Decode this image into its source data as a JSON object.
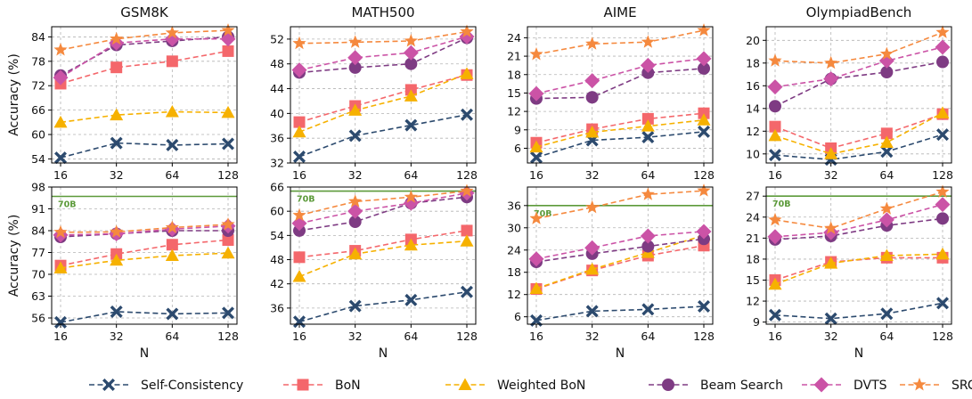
{
  "x_label": "N",
  "y_label": "Accuracy (%)",
  "ref_label": "70B",
  "series_meta": [
    {
      "name": "Self-Consistency",
      "color": "#2c4a6e",
      "marker": "x-icon"
    },
    {
      "name": "BoN",
      "color": "#f4676b",
      "marker": "square-icon"
    },
    {
      "name": "Weighted BoN",
      "color": "#f6b100",
      "marker": "triangle-icon"
    },
    {
      "name": "Beam Search",
      "color": "#7e3b83",
      "marker": "circle-icon"
    },
    {
      "name": "DVTS",
      "color": "#cb53a6",
      "marker": "diamond-icon"
    },
    {
      "name": "SRCA",
      "color": "#f5893e",
      "marker": "star-icon"
    }
  ],
  "chart_data": [
    {
      "type": "line",
      "title": "GSM8K",
      "x": [
        "16",
        "32",
        "64",
        "128"
      ],
      "ylim": [
        53,
        86.5
      ],
      "yticks": [
        54,
        60,
        66,
        72,
        78,
        84
      ],
      "series": [
        {
          "name": "Self-Consistency",
          "values": [
            54.3,
            57.9,
            57.4,
            57.7
          ]
        },
        {
          "name": "BoN",
          "values": [
            72.5,
            76.5,
            78.0,
            80.5
          ]
        },
        {
          "name": "Weighted BoN",
          "values": [
            63.0,
            64.8,
            65.6,
            65.4
          ]
        },
        {
          "name": "Beam Search",
          "values": [
            74.5,
            82.0,
            83.0,
            84.0
          ]
        },
        {
          "name": "DVTS",
          "values": [
            74.0,
            82.5,
            83.5,
            83.5
          ]
        },
        {
          "name": "SRCA",
          "values": [
            80.8,
            83.5,
            85.0,
            85.6
          ]
        }
      ]
    },
    {
      "type": "line",
      "title": "MATH500",
      "x": [
        "16",
        "32",
        "64",
        "128"
      ],
      "ylim": [
        32,
        54
      ],
      "yticks": [
        32,
        36,
        40,
        44,
        48,
        52
      ],
      "series": [
        {
          "name": "Self-Consistency",
          "values": [
            33.0,
            36.4,
            38.1,
            39.8
          ]
        },
        {
          "name": "BoN",
          "values": [
            38.6,
            41.2,
            43.8,
            46.2
          ]
        },
        {
          "name": "Weighted BoN",
          "values": [
            37.0,
            40.5,
            42.8,
            46.4
          ]
        },
        {
          "name": "Beam Search",
          "values": [
            46.6,
            47.4,
            48.0,
            52.2
          ]
        },
        {
          "name": "DVTS",
          "values": [
            47.0,
            49.0,
            49.8,
            52.4
          ]
        },
        {
          "name": "SRCA",
          "values": [
            51.3,
            51.5,
            51.7,
            53.2
          ]
        }
      ]
    },
    {
      "type": "line",
      "title": "AIME",
      "x": [
        "16",
        "32",
        "64",
        "128"
      ],
      "ylim": [
        3.6,
        25.8
      ],
      "yticks": [
        6,
        9,
        12,
        15,
        18,
        21,
        24
      ],
      "series": [
        {
          "name": "Self-Consistency",
          "values": [
            4.5,
            7.3,
            7.8,
            8.7
          ]
        },
        {
          "name": "BoN",
          "values": [
            6.9,
            9.1,
            10.8,
            11.7
          ]
        },
        {
          "name": "Weighted BoN",
          "values": [
            6.2,
            8.6,
            9.6,
            10.6
          ]
        },
        {
          "name": "Beam Search",
          "values": [
            14.1,
            14.3,
            18.3,
            19.0
          ]
        },
        {
          "name": "DVTS",
          "values": [
            14.9,
            17.0,
            19.5,
            20.6
          ]
        },
        {
          "name": "SRCA",
          "values": [
            21.3,
            23.0,
            23.3,
            25.2
          ]
        }
      ]
    },
    {
      "type": "line",
      "title": "OlympiadBench",
      "x": [
        "16",
        "32",
        "64",
        "128"
      ],
      "ylim": [
        9.2,
        21.2
      ],
      "yticks": [
        10,
        12,
        14,
        16,
        18,
        20
      ],
      "series": [
        {
          "name": "Self-Consistency",
          "values": [
            9.9,
            9.5,
            10.2,
            11.7
          ]
        },
        {
          "name": "BoN",
          "values": [
            12.4,
            10.5,
            11.8,
            13.5
          ]
        },
        {
          "name": "Weighted BoN",
          "values": [
            11.6,
            10.0,
            11.0,
            13.6
          ]
        },
        {
          "name": "Beam Search",
          "values": [
            14.2,
            16.6,
            17.2,
            18.1
          ]
        },
        {
          "name": "DVTS",
          "values": [
            15.9,
            16.6,
            18.2,
            19.4
          ]
        },
        {
          "name": "SRCA",
          "values": [
            18.2,
            18.0,
            18.8,
            20.7
          ]
        }
      ]
    },
    {
      "type": "line",
      "title": "",
      "x": [
        "16",
        "32",
        "64",
        "128"
      ],
      "ylim": [
        54,
        98
      ],
      "yticks": [
        56,
        63,
        70,
        77,
        84,
        91,
        98
      ],
      "ref_line": 95.0,
      "series": [
        {
          "name": "Self-Consistency",
          "values": [
            54.6,
            58.0,
            57.3,
            57.6
          ]
        },
        {
          "name": "BoN",
          "values": [
            72.8,
            76.5,
            79.5,
            81.0
          ]
        },
        {
          "name": "Weighted BoN",
          "values": [
            72.0,
            74.5,
            76.0,
            76.8
          ]
        },
        {
          "name": "Beam Search",
          "values": [
            82.0,
            83.0,
            84.0,
            84.0
          ]
        },
        {
          "name": "DVTS",
          "values": [
            82.6,
            83.0,
            84.5,
            85.5
          ]
        },
        {
          "name": "SRCA",
          "values": [
            83.5,
            83.6,
            85.0,
            86.0
          ]
        }
      ]
    },
    {
      "type": "line",
      "title": "",
      "x": [
        "16",
        "32",
        "64",
        "128"
      ],
      "ylim": [
        32,
        66
      ],
      "yticks": [
        36,
        42,
        48,
        54,
        60,
        66
      ],
      "ref_line": 65.0,
      "series": [
        {
          "name": "Self-Consistency",
          "values": [
            32.6,
            36.5,
            38.0,
            40.0
          ]
        },
        {
          "name": "BoN",
          "values": [
            48.6,
            50.2,
            53.0,
            55.2
          ]
        },
        {
          "name": "Weighted BoN",
          "values": [
            43.8,
            49.4,
            51.6,
            52.6
          ]
        },
        {
          "name": "Beam Search",
          "values": [
            55.2,
            57.4,
            62.0,
            63.5
          ]
        },
        {
          "name": "DVTS",
          "values": [
            57.0,
            60.0,
            62.0,
            64.5
          ]
        },
        {
          "name": "SRCA",
          "values": [
            59.0,
            62.4,
            63.5,
            65.0
          ]
        }
      ]
    },
    {
      "type": "line",
      "title": "",
      "x": [
        "16",
        "32",
        "64",
        "128"
      ],
      "ylim": [
        4,
        41
      ],
      "yticks": [
        6,
        12,
        18,
        24,
        30,
        36
      ],
      "ref_line": 36.0,
      "series": [
        {
          "name": "Self-Consistency",
          "values": [
            5.0,
            7.5,
            8.0,
            8.8
          ]
        },
        {
          "name": "BoN",
          "values": [
            13.5,
            18.5,
            22.5,
            25.2
          ]
        },
        {
          "name": "Weighted BoN",
          "values": [
            13.6,
            18.8,
            23.3,
            28.0
          ]
        },
        {
          "name": "Beam Search",
          "values": [
            20.8,
            23.0,
            25.0,
            27.0
          ]
        },
        {
          "name": "DVTS",
          "values": [
            21.6,
            24.6,
            27.8,
            29.0
          ]
        },
        {
          "name": "SRCA",
          "values": [
            32.5,
            35.5,
            39.0,
            40.0
          ]
        }
      ]
    },
    {
      "type": "line",
      "title": "",
      "x": [
        "16",
        "32",
        "64",
        "128"
      ],
      "ylim": [
        8.7,
        28.3
      ],
      "yticks": [
        9,
        12,
        15,
        18,
        21,
        24,
        27
      ],
      "ref_line": 27.0,
      "series": [
        {
          "name": "Self-Consistency",
          "values": [
            10.0,
            9.5,
            10.2,
            11.7
          ]
        },
        {
          "name": "BoN",
          "values": [
            15.0,
            17.6,
            18.2,
            18.2
          ]
        },
        {
          "name": "Weighted BoN",
          "values": [
            14.4,
            17.4,
            18.5,
            18.7
          ]
        },
        {
          "name": "Beam Search",
          "values": [
            20.8,
            21.3,
            22.8,
            23.8
          ]
        },
        {
          "name": "DVTS",
          "values": [
            21.2,
            21.8,
            23.6,
            25.8
          ]
        },
        {
          "name": "SRCA",
          "values": [
            23.6,
            22.4,
            25.2,
            27.6
          ]
        }
      ]
    }
  ]
}
